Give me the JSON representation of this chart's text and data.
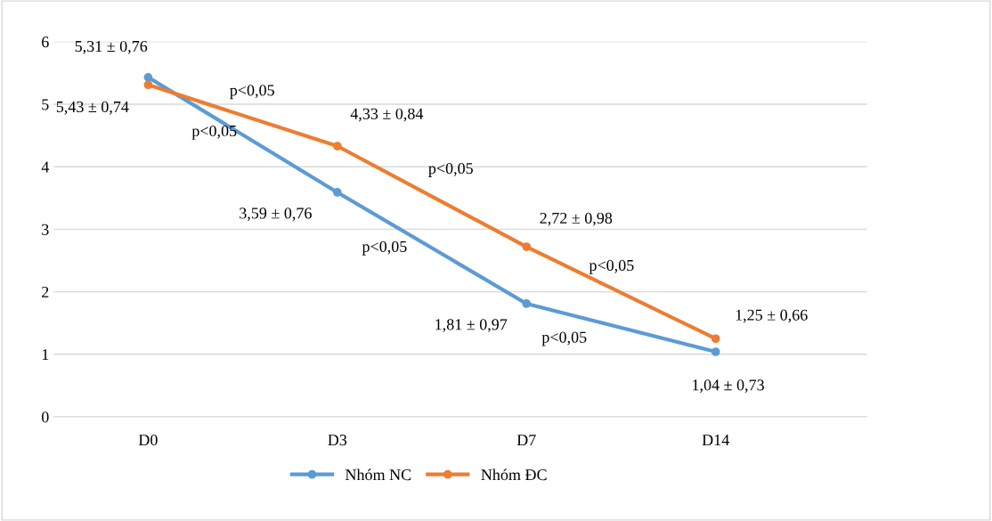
{
  "chart_data": {
    "type": "line",
    "categories": [
      "D0",
      "D3",
      "D7",
      "D14"
    ],
    "series": [
      {
        "name": "Nhóm NC",
        "color": "#5b9bd5",
        "values": [
          5.43,
          3.59,
          1.81,
          1.04
        ]
      },
      {
        "name": "Nhóm ĐC",
        "color": "#ed7d31",
        "values": [
          5.31,
          4.33,
          2.72,
          1.25
        ]
      }
    ],
    "ylim": [
      0,
      6
    ],
    "yticks": [
      0,
      1,
      2,
      3,
      4,
      5,
      6
    ],
    "grid": "y",
    "legend": "bottom",
    "marker": "circle",
    "line_style": "solid",
    "annotations": [
      {
        "text": "5,43 ± 0,74",
        "x": "D0",
        "y": 5.43
      },
      {
        "text": "3,59 ± 0,76",
        "x": "D3",
        "y": 3.59
      },
      {
        "text": "1,81 ± 0,97",
        "x": "D7",
        "y": 1.81
      },
      {
        "text": "1,04 ± 0,73",
        "x": "D14",
        "y": 1.04
      },
      {
        "text": "5,31 ± 0,76",
        "x": "D0",
        "y": 5.31
      },
      {
        "text": "4,33 ± 0,84",
        "x": "D3",
        "y": 4.33
      },
      {
        "text": "2,72 ± 0,98",
        "x": "D7",
        "y": 2.72
      },
      {
        "text": "1,25 ± 0,66",
        "x": "D14",
        "y": 1.25
      },
      "p<0,05",
      "p<0,05",
      "p<0,05",
      "p<0,05",
      "p<0,05",
      "p<0,05"
    ]
  }
}
